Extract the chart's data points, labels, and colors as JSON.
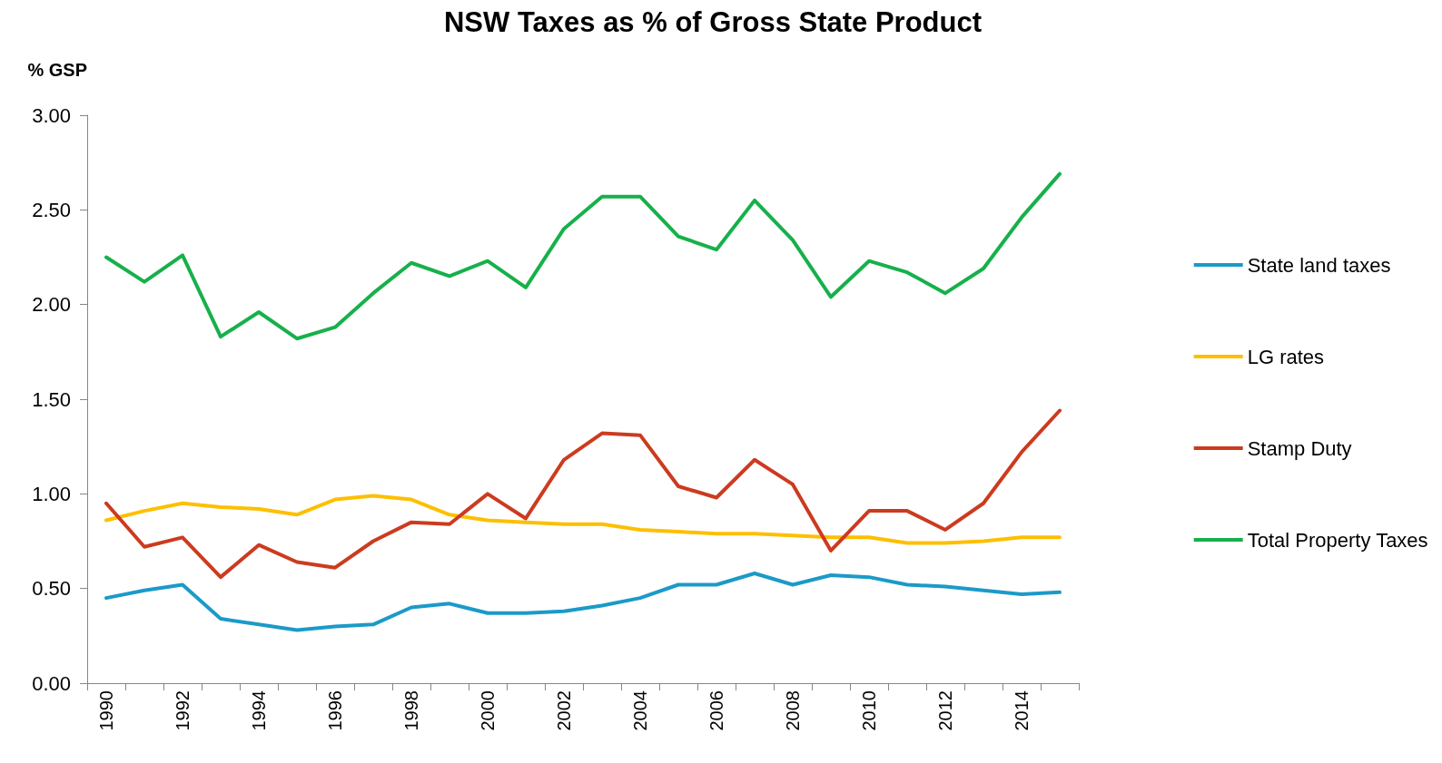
{
  "chart_data": {
    "type": "line",
    "title": "NSW Taxes as % of Gross State Product",
    "ylabel": "% GSP",
    "categories": [
      "1990",
      null,
      "1992",
      null,
      "1994",
      null,
      "1996",
      null,
      "1998",
      null,
      "2000",
      null,
      "2002",
      null,
      "2004",
      null,
      "2006",
      null,
      "2008",
      null,
      "2010",
      null,
      "2012",
      null,
      "2014",
      null
    ],
    "series": [
      {
        "name": "State land taxes",
        "color": "#1b9ac8",
        "values": [
          0.45,
          0.49,
          0.52,
          0.34,
          0.31,
          0.28,
          0.3,
          0.31,
          0.4,
          0.42,
          0.37,
          0.37,
          0.38,
          0.41,
          0.45,
          0.52,
          0.52,
          0.58,
          0.52,
          0.57,
          0.56,
          0.52,
          0.51,
          0.49,
          0.47,
          0.48
        ]
      },
      {
        "name": "LG rates",
        "color": "#fdbf00",
        "values": [
          0.86,
          0.91,
          0.95,
          0.93,
          0.92,
          0.89,
          0.97,
          0.99,
          0.97,
          0.89,
          0.86,
          0.85,
          0.84,
          0.84,
          0.81,
          0.8,
          0.79,
          0.79,
          0.78,
          0.77,
          0.77,
          0.74,
          0.74,
          0.75,
          0.77,
          0.77
        ]
      },
      {
        "name": "Stamp Duty",
        "color": "#cc3b1f",
        "values": [
          0.95,
          0.72,
          0.77,
          0.56,
          0.73,
          0.64,
          0.61,
          0.75,
          0.85,
          0.84,
          1.0,
          0.87,
          1.18,
          1.32,
          1.31,
          1.04,
          0.98,
          1.18,
          1.05,
          0.7,
          0.91,
          0.91,
          0.81,
          0.95,
          1.22,
          1.44
        ]
      },
      {
        "name": "Total Property Taxes",
        "color": "#17b04b",
        "values": [
          2.25,
          2.12,
          2.26,
          1.83,
          1.96,
          1.82,
          1.88,
          2.06,
          2.22,
          2.15,
          2.23,
          2.09,
          2.4,
          2.57,
          2.57,
          2.36,
          2.29,
          2.55,
          2.34,
          2.04,
          2.23,
          2.17,
          2.06,
          2.19,
          2.46,
          2.69
        ]
      }
    ],
    "ylim": [
      0,
      3
    ],
    "yticks": [
      {
        "value": 0,
        "label": "0.00"
      },
      {
        "value": 0.5,
        "label": "0.50"
      },
      {
        "value": 1,
        "label": "1.00"
      },
      {
        "value": 1.5,
        "label": "1.50"
      },
      {
        "value": 2,
        "label": "2.00"
      },
      {
        "value": 2.5,
        "label": "2.50"
      },
      {
        "value": 3,
        "label": "3.00"
      }
    ],
    "grid": false,
    "legend": "right",
    "marker": "none",
    "line_style": "solid"
  }
}
